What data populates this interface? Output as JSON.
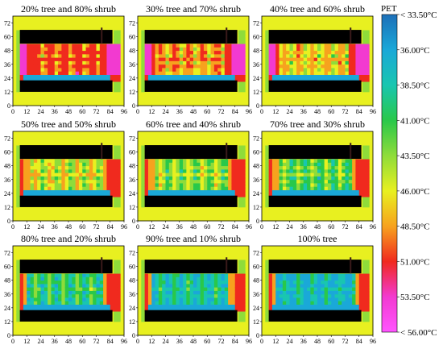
{
  "chart_data": {
    "type": "heatmap",
    "x_ticks": [
      "0",
      "12",
      "24",
      "36",
      "48",
      "60",
      "72",
      "84",
      "96"
    ],
    "y_ticks": [
      "0",
      "12",
      "24",
      "36",
      "48",
      "60",
      "72"
    ],
    "xlim": [
      0,
      96
    ],
    "ylim": [
      0,
      78
    ],
    "colorbar": {
      "title": "PET",
      "labels": [
        "< 33.50°C",
        "36.00°C",
        "38.50°C",
        "41.00°C",
        "43.50°C",
        "46.00°C",
        "48.50°C",
        "51.00°C",
        "53.50°C",
        "< 56.00°C"
      ],
      "colors": [
        "#1c6fb8",
        "#1aa8d8",
        "#19c6b0",
        "#29c84a",
        "#8fdc3a",
        "#e8f020",
        "#f7a21e",
        "#f02a1e",
        "#f23ad0",
        "#ff55ff"
      ]
    },
    "buildings": [
      {
        "x0": 6,
        "x1": 86,
        "y0": 54,
        "y1": 66
      },
      {
        "x0": 6,
        "x1": 86,
        "y0": 12,
        "y1": 22
      }
    ],
    "panels": [
      {
        "title": "20% tree and 80% shrub",
        "tree_fraction": 0.2
      },
      {
        "title": "30% tree and 70% shrub",
        "tree_fraction": 0.3
      },
      {
        "title": "40% tree and 60% shrub",
        "tree_fraction": 0.4
      },
      {
        "title": "50% tree and 50% shrub",
        "tree_fraction": 0.5
      },
      {
        "title": "60% tree and 40% shrub",
        "tree_fraction": 0.6
      },
      {
        "title": "70% tree and 30% shrub",
        "tree_fraction": 0.7
      },
      {
        "title": "80% tree and 20% shrub",
        "tree_fraction": 0.8
      },
      {
        "title": "90% tree and 10% shrub",
        "tree_fraction": 0.9
      },
      {
        "title": "100% tree",
        "tree_fraction": 1.0
      }
    ]
  }
}
